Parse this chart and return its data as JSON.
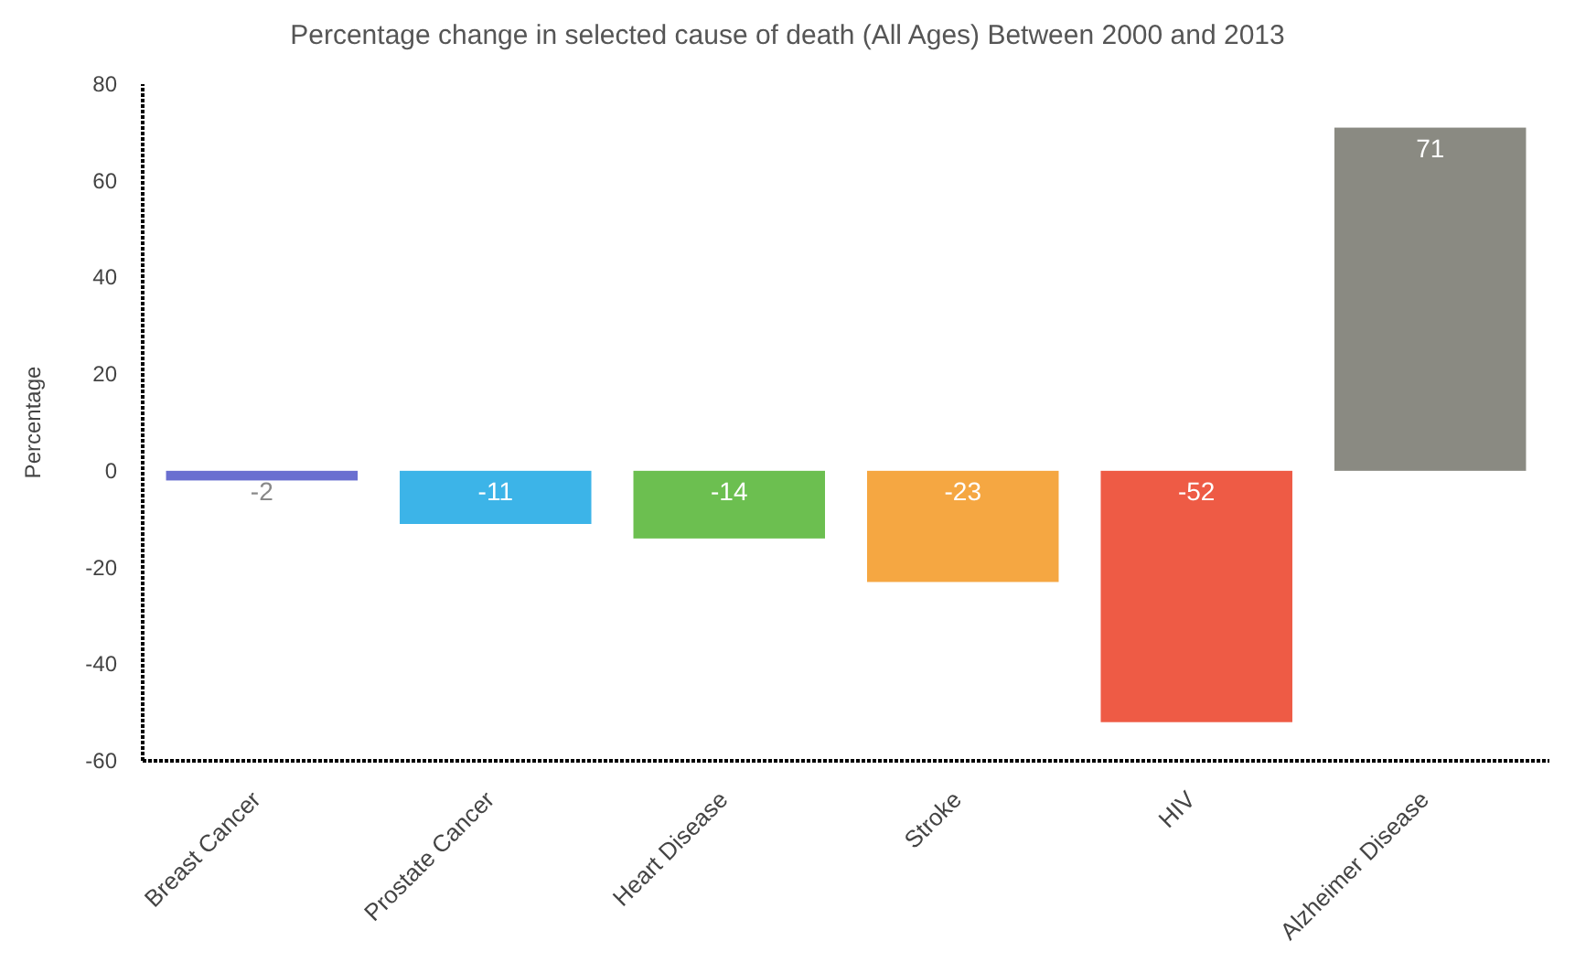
{
  "chart_data": {
    "type": "bar",
    "title": "Percentage change in selected cause of death (All Ages) Between 2000 and 2013",
    "ylabel": "Percentage",
    "categories": [
      "Breast Cancer",
      "Prostate Cancer",
      "Heart Disease",
      "Stroke",
      "HIV",
      "Alzheimer Disease"
    ],
    "values": [
      -2,
      -11,
      -14,
      -23,
      -52,
      71
    ],
    "colors": [
      "#6a6fd0",
      "#3cb4e8",
      "#6cbf50",
      "#f5a742",
      "#ee5b45",
      "#8a8a82"
    ],
    "ylim": [
      -60,
      80
    ],
    "yticks": [
      -60,
      -40,
      -20,
      0,
      20,
      40,
      60,
      80
    ],
    "grid": false,
    "data_labels": true
  }
}
